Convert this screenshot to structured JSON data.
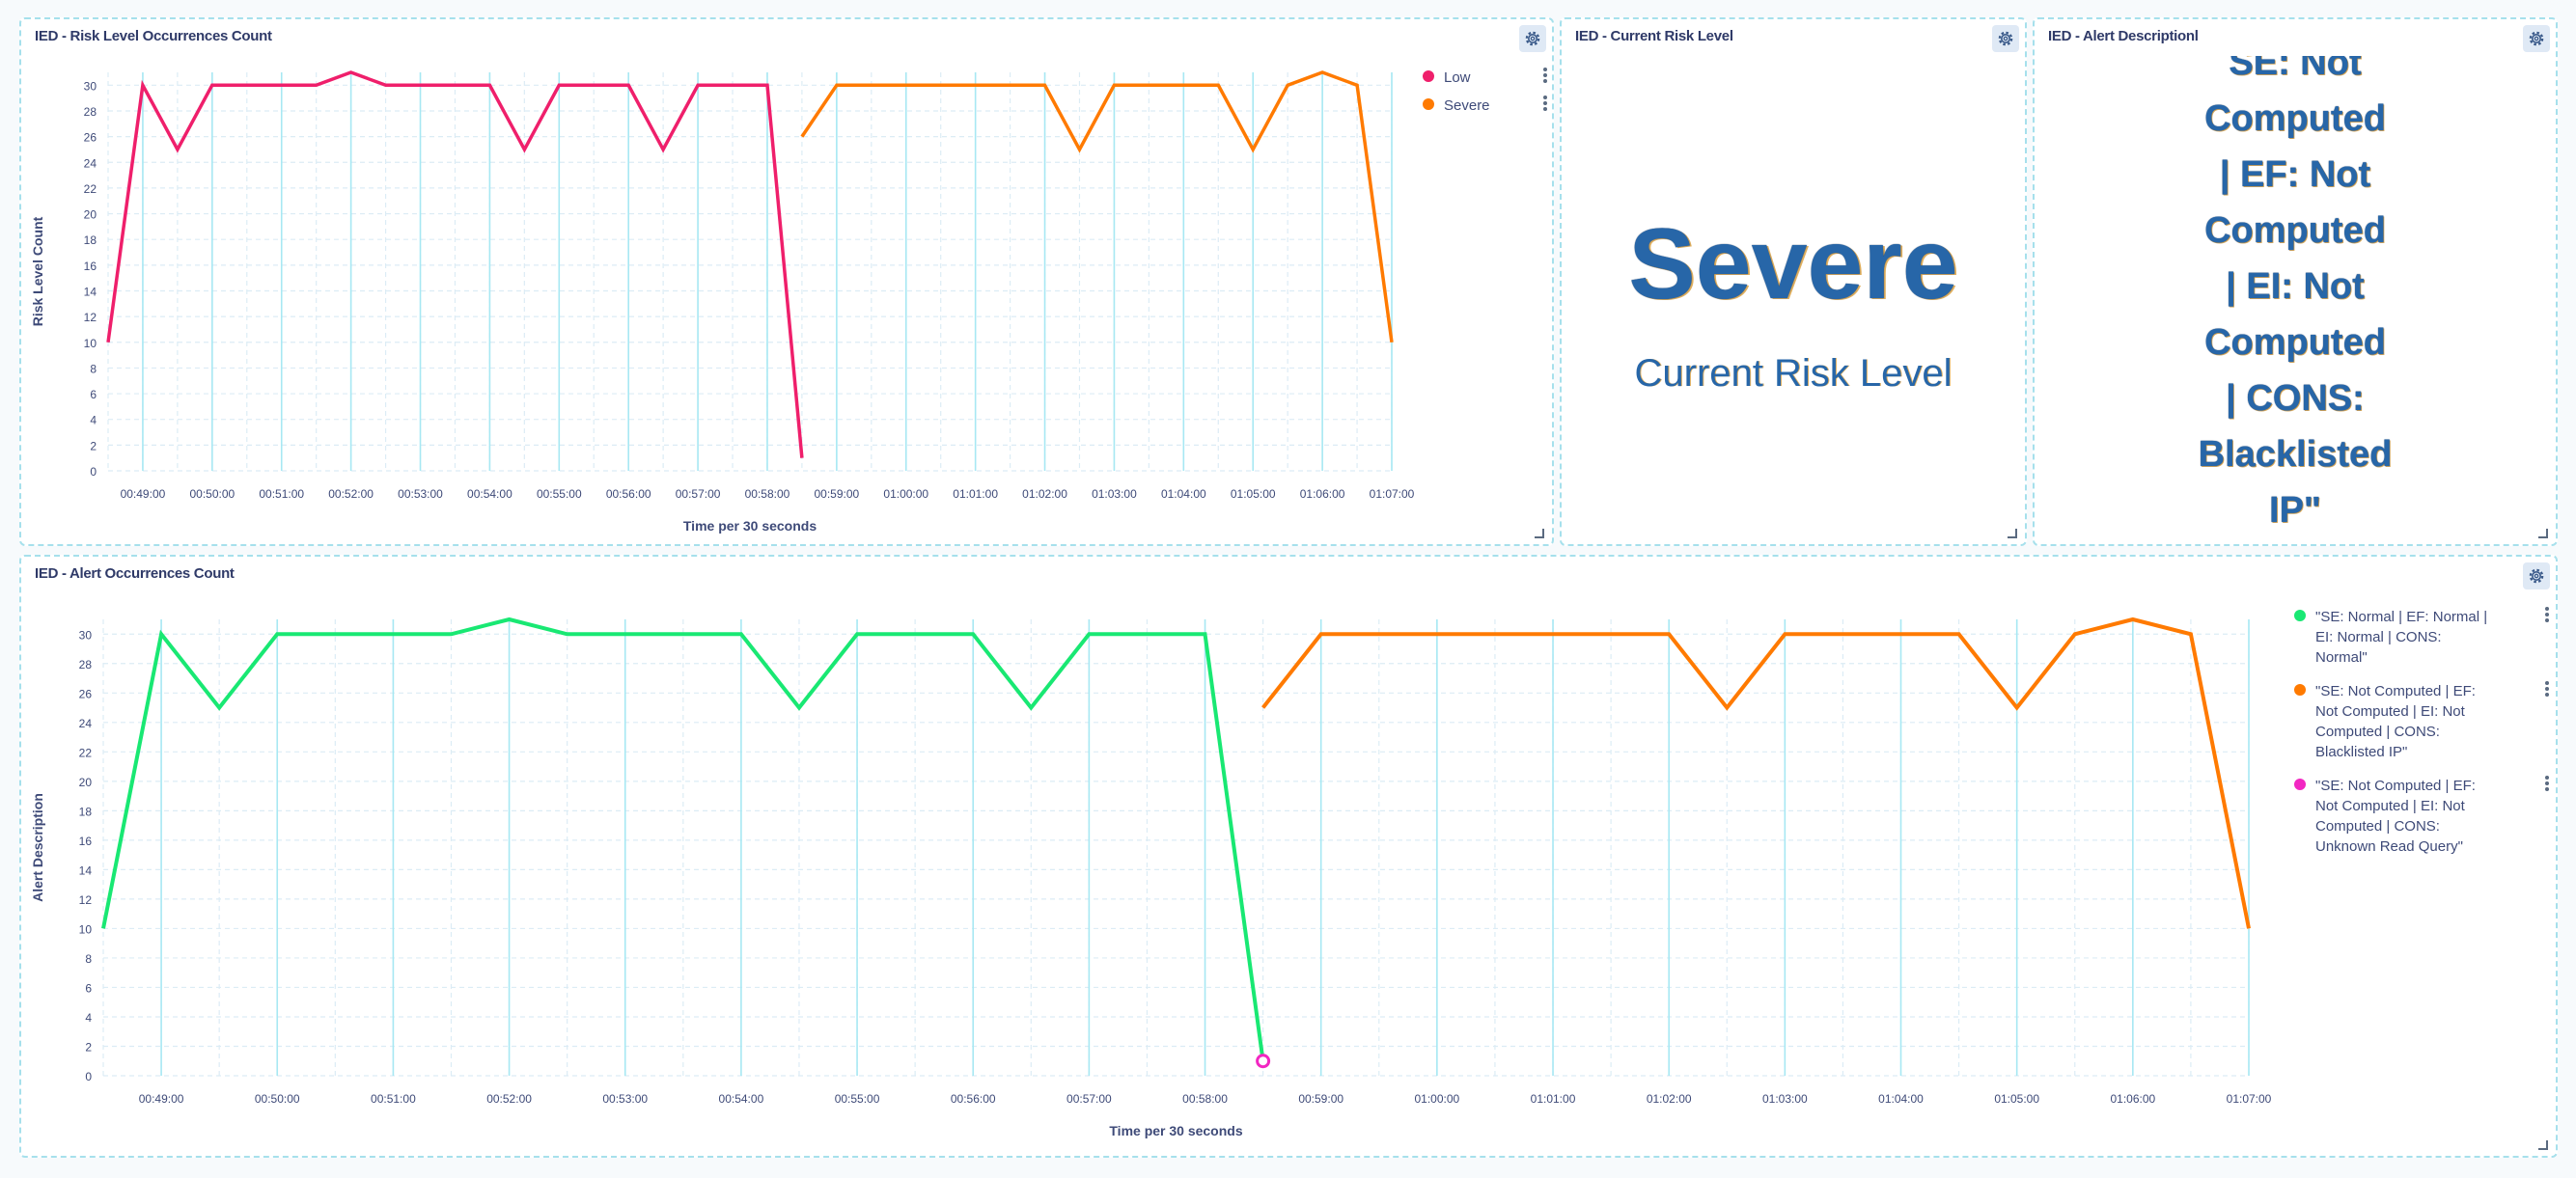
{
  "colors": {
    "low": "#ef1f6b",
    "severe": "#ff7a00",
    "normal": "#19e873",
    "unknown": "#f227c2",
    "axis_text": "#3e4a78",
    "grid_minor": "#dcecf5",
    "grid_major": "#a7e8f3"
  },
  "risk_panel": {
    "title": "IED - Risk Level Occurrences Count",
    "gear_icon": "gear-icon",
    "legend": [
      {
        "label": "Low",
        "color": "#ef1f6b"
      },
      {
        "label": "Severe",
        "color": "#ff7a00"
      }
    ]
  },
  "current_panel": {
    "title": "IED - Current Risk Level",
    "gear_icon": "gear-icon",
    "value": "Severe",
    "label": "Current Risk Level"
  },
  "description_panel": {
    "title": "IED - Alert Descriptionl",
    "gear_icon": "gear-icon",
    "lines": [
      "SE: Not",
      "Computed",
      "| EF: Not",
      "Computed",
      "| EI: Not",
      "Computed",
      "| CONS:",
      "Blacklisted",
      "IP\""
    ]
  },
  "alert_panel": {
    "title": "IED - Alert Occurrences Count",
    "gear_icon": "gear-icon",
    "legend": [
      {
        "label": "\"SE: Normal | EF: Normal | EI: Normal | CONS: Normal\"",
        "color": "#19e873",
        "lines": [
          "\"SE: Normal | EF: Normal |",
          "EI: Normal | CONS:",
          "Normal\""
        ]
      },
      {
        "label": "\"SE: Not Computed | EF: Not Computed | EI: Not Computed | CONS: Blacklisted IP\"",
        "color": "#ff7a00",
        "lines": [
          "\"SE: Not Computed | EF:",
          "Not Computed | EI: Not",
          "Computed | CONS:",
          "Blacklisted IP\""
        ]
      },
      {
        "label": "\"SE: Not Computed | EF: Not Computed | EI: Not Computed | CONS: Unknown Read Query\"",
        "color": "#f227c2",
        "lines": [
          "\"SE: Not Computed | EF:",
          "Not Computed | EI: Not",
          "Computed | CONS:",
          "Unknown Read Query\""
        ]
      }
    ]
  },
  "chart_data": [
    {
      "type": "line",
      "title": "IED - Risk Level Occurrences Count",
      "xlabel": "Time per 30 seconds",
      "ylabel": "Risk Level Count",
      "ylim": [
        0,
        31
      ],
      "yticks": [
        0,
        2,
        4,
        6,
        8,
        10,
        12,
        14,
        16,
        18,
        20,
        22,
        24,
        26,
        28,
        30
      ],
      "xlim": [
        "00:48:30",
        "00:67:00"
      ],
      "xticks": [
        "00:49:00",
        "00:50:00",
        "00:51:00",
        "00:52:00",
        "00:53:00",
        "00:54:00",
        "00:55:00",
        "00:56:00",
        "00:57:00",
        "00:58:00",
        "00:59:00",
        "01:00:00",
        "01:01:00",
        "01:02:00",
        "01:03:00",
        "01:04:00",
        "01:05:00",
        "01:06:00",
        "01:07:00"
      ],
      "grid": true,
      "legend_position": "right",
      "series": [
        {
          "name": "Low",
          "color": "#ef1f6b",
          "x": [
            "00:48:30",
            "00:49:00",
            "00:49:30",
            "00:50:00",
            "00:50:30",
            "00:51:00",
            "00:51:30",
            "00:52:00",
            "00:52:30",
            "00:53:00",
            "00:53:30",
            "00:54:00",
            "00:54:30",
            "00:55:00",
            "00:55:30",
            "00:56:00",
            "00:56:30",
            "00:57:00",
            "00:57:30",
            "00:58:00",
            "00:58:30"
          ],
          "y": [
            10,
            30,
            25,
            30,
            30,
            30,
            30,
            31,
            30,
            30,
            30,
            30,
            25,
            30,
            30,
            30,
            25,
            30,
            30,
            30,
            1
          ]
        },
        {
          "name": "Severe",
          "color": "#ff7a00",
          "x": [
            "00:58:30",
            "00:59:00",
            "00:59:30",
            "01:00:00",
            "01:00:30",
            "01:01:00",
            "01:01:30",
            "01:02:00",
            "01:02:30",
            "01:03:00",
            "01:03:30",
            "01:04:00",
            "01:04:30",
            "01:05:00",
            "01:05:30",
            "01:06:00",
            "01:06:30",
            "01:07:00"
          ],
          "y": [
            26,
            30,
            30,
            30,
            30,
            30,
            30,
            30,
            25,
            30,
            30,
            30,
            30,
            25,
            30,
            31,
            30,
            10
          ]
        }
      ]
    },
    {
      "type": "line",
      "title": "IED - Alert Occurrences Count",
      "xlabel": "Time per 30 seconds",
      "ylabel": "Alert Description",
      "ylim": [
        0,
        31
      ],
      "yticks": [
        0,
        2,
        4,
        6,
        8,
        10,
        12,
        14,
        16,
        18,
        20,
        22,
        24,
        26,
        28,
        30
      ],
      "xlim": [
        "00:48:30",
        "01:07:00"
      ],
      "xticks": [
        "00:49:00",
        "00:50:00",
        "00:51:00",
        "00:52:00",
        "00:53:00",
        "00:54:00",
        "00:55:00",
        "00:56:00",
        "00:57:00",
        "00:58:00",
        "00:59:00",
        "01:00:00",
        "01:01:00",
        "01:02:00",
        "01:03:00",
        "01:04:00",
        "01:05:00",
        "01:06:00",
        "01:07:00"
      ],
      "grid": true,
      "legend_position": "right",
      "series": [
        {
          "name": "\"SE: Normal | EF: Normal | EI: Normal | CONS: Normal\"",
          "color": "#19e873",
          "x": [
            "00:48:30",
            "00:49:00",
            "00:49:30",
            "00:50:00",
            "00:50:30",
            "00:51:00",
            "00:51:30",
            "00:52:00",
            "00:52:30",
            "00:53:00",
            "00:53:30",
            "00:54:00",
            "00:54:30",
            "00:55:00",
            "00:55:30",
            "00:56:00",
            "00:56:30",
            "00:57:00",
            "00:57:30",
            "00:58:00",
            "00:58:30"
          ],
          "y": [
            10,
            30,
            25,
            30,
            30,
            30,
            30,
            31,
            30,
            30,
            30,
            30,
            25,
            30,
            30,
            30,
            25,
            30,
            30,
            30,
            1
          ]
        },
        {
          "name": "\"SE: Not Computed | EF: Not Computed | EI: Not Computed | CONS: Blacklisted IP\"",
          "color": "#ff7a00",
          "x": [
            "00:58:30",
            "00:59:00",
            "00:59:30",
            "01:00:00",
            "01:00:30",
            "01:01:00",
            "01:01:30",
            "01:02:00",
            "01:02:30",
            "01:03:00",
            "01:03:30",
            "01:04:00",
            "01:04:30",
            "01:05:00",
            "01:05:30",
            "01:06:00",
            "01:06:30",
            "01:07:00"
          ],
          "y": [
            25,
            30,
            30,
            30,
            30,
            30,
            30,
            30,
            25,
            30,
            30,
            30,
            30,
            25,
            30,
            31,
            30,
            10
          ]
        },
        {
          "name": "\"SE: Not Computed | EF: Not Computed | EI: Not Computed | CONS: Unknown Read Query\"",
          "color": "#f227c2",
          "x": [
            "00:58:30"
          ],
          "y": [
            1
          ]
        }
      ]
    }
  ]
}
